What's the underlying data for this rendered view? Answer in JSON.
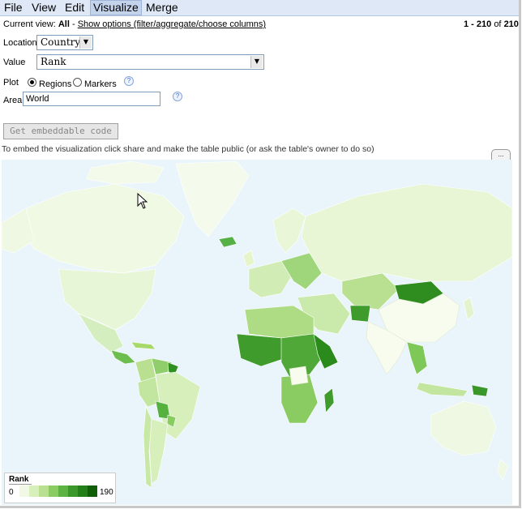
{
  "menu": {
    "items": [
      "File",
      "View",
      "Edit",
      "Visualize",
      "Merge"
    ],
    "active": "Visualize"
  },
  "view": {
    "label": "Current view:",
    "value": "All",
    "sep": " - ",
    "options_link": "Show options (filter/aggregate/choose columns)"
  },
  "pagination": {
    "range": "1 - 210",
    "of": "of",
    "total": "210"
  },
  "form": {
    "location_label": "Location",
    "location_value": "Country",
    "value_label": "Value",
    "value_value": "Rank",
    "plot_label": "Plot",
    "plot_regions": "Regions",
    "plot_markers": "Markers",
    "area_label": "Area",
    "area_value": "World",
    "help_glyph": "?"
  },
  "embed": {
    "button": "Get embeddable code",
    "note": "To embed the visualization click share and make the table public (or ask the table's owner to do so)"
  },
  "map_tab": "...",
  "legend": {
    "title": "Rank",
    "min": "0",
    "max": "190"
  },
  "colors": {
    "menubar": "#dfe8f6",
    "ocean": "#eaf4fb",
    "land_light": "#e6f5c9",
    "land_mid": "#a6d96a",
    "land_dark": "#1b7a0e"
  }
}
